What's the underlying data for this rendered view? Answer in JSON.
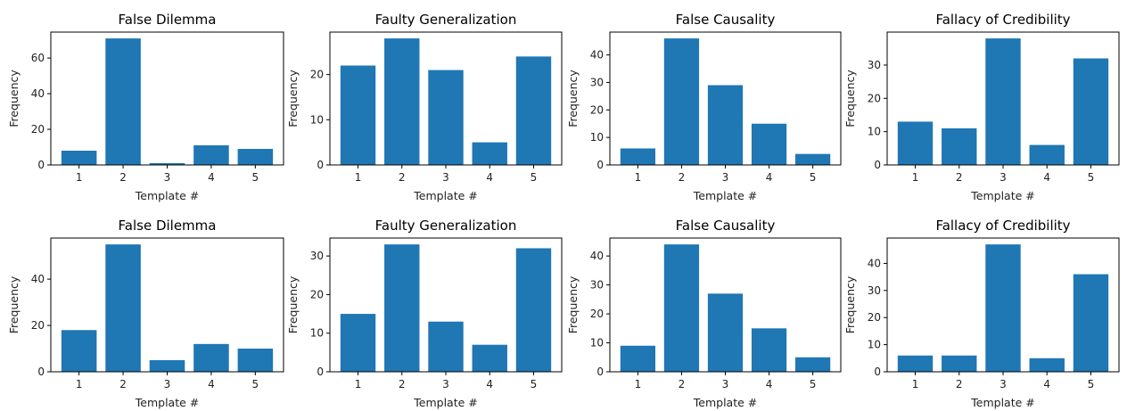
{
  "chart_data": [
    {
      "type": "bar",
      "title": "False Dilemma",
      "xlabel": "Template #",
      "ylabel": "Frequency",
      "categories": [
        "1",
        "2",
        "3",
        "4",
        "5"
      ],
      "values": [
        8,
        71,
        1,
        11,
        9
      ],
      "yticks": [
        0,
        20,
        40,
        60
      ],
      "ylim": [
        0,
        74.55
      ],
      "color": "#1f77b4"
    },
    {
      "type": "bar",
      "title": "Faulty Generalization",
      "xlabel": "Template #",
      "ylabel": "Frequency",
      "categories": [
        "1",
        "2",
        "3",
        "4",
        "5"
      ],
      "values": [
        22,
        28,
        21,
        5,
        24
      ],
      "yticks": [
        0,
        10,
        20
      ],
      "ylim": [
        0,
        29.4
      ],
      "color": "#1f77b4"
    },
    {
      "type": "bar",
      "title": "False Causality",
      "xlabel": "Template #",
      "ylabel": "Frequency",
      "categories": [
        "1",
        "2",
        "3",
        "4",
        "5"
      ],
      "values": [
        6,
        46,
        29,
        15,
        4
      ],
      "yticks": [
        0,
        10,
        20,
        30,
        40
      ],
      "ylim": [
        0,
        48.3
      ],
      "color": "#1f77b4"
    },
    {
      "type": "bar",
      "title": "Fallacy of Credibility",
      "xlabel": "Template #",
      "ylabel": "Frequency",
      "categories": [
        "1",
        "2",
        "3",
        "4",
        "5"
      ],
      "values": [
        13,
        11,
        38,
        6,
        32
      ],
      "yticks": [
        0,
        10,
        20,
        30
      ],
      "ylim": [
        0,
        39.9
      ],
      "color": "#1f77b4"
    },
    {
      "type": "bar",
      "title": "False Dilemma",
      "xlabel": "Template #",
      "ylabel": "Frequency",
      "categories": [
        "1",
        "2",
        "3",
        "4",
        "5"
      ],
      "values": [
        18,
        55,
        5,
        12,
        10
      ],
      "yticks": [
        0,
        20,
        40
      ],
      "ylim": [
        0,
        57.75
      ],
      "color": "#1f77b4"
    },
    {
      "type": "bar",
      "title": "Faulty Generalization",
      "xlabel": "Template #",
      "ylabel": "Frequency",
      "categories": [
        "1",
        "2",
        "3",
        "4",
        "5"
      ],
      "values": [
        15,
        33,
        13,
        7,
        32
      ],
      "yticks": [
        0,
        10,
        20,
        30
      ],
      "ylim": [
        0,
        34.65
      ],
      "color": "#1f77b4"
    },
    {
      "type": "bar",
      "title": "False Causality",
      "xlabel": "Template #",
      "ylabel": "Frequency",
      "categories": [
        "1",
        "2",
        "3",
        "4",
        "5"
      ],
      "values": [
        9,
        44,
        27,
        15,
        5
      ],
      "yticks": [
        0,
        10,
        20,
        30,
        40
      ],
      "ylim": [
        0,
        46.2
      ],
      "color": "#1f77b4"
    },
    {
      "type": "bar",
      "title": "Fallacy of Credibility",
      "xlabel": "Template #",
      "ylabel": "Frequency",
      "categories": [
        "1",
        "2",
        "3",
        "4",
        "5"
      ],
      "values": [
        6,
        6,
        47,
        5,
        36
      ],
      "yticks": [
        0,
        10,
        20,
        30,
        40
      ],
      "ylim": [
        0,
        49.35
      ],
      "color": "#1f77b4"
    }
  ]
}
